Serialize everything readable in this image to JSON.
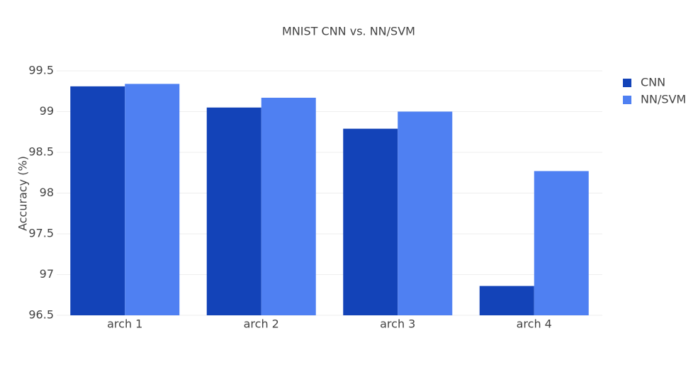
{
  "chart_data": {
    "type": "bar",
    "title": "MNIST CNN vs. NN/SVM",
    "y_label": "Accuracy (%)",
    "categories": [
      "arch 1",
      "arch 2",
      "arch 3",
      "arch 4"
    ],
    "series": [
      {
        "name": "CNN",
        "color": "#1343b8",
        "values": [
          99.31,
          99.05,
          98.79,
          96.86
        ]
      },
      {
        "name": "NN/SVM",
        "color": "#4f80f2",
        "values": [
          99.34,
          99.17,
          99.0,
          98.27
        ]
      }
    ],
    "ylim": [
      96.5,
      99.5
    ],
    "yticks": [
      96.5,
      97,
      97.5,
      98,
      98.5,
      99,
      99.5
    ],
    "grid": true,
    "legend": "right"
  }
}
